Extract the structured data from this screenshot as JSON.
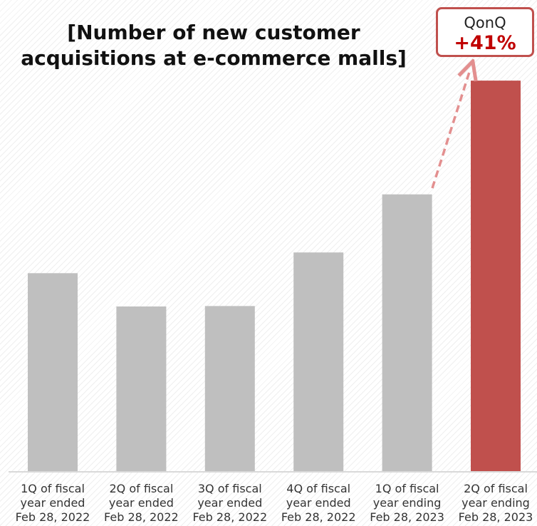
{
  "chart_data": {
    "type": "bar",
    "title": [
      "[Number of new customer",
      "acquisitions at e-commerce malls]"
    ],
    "categories": [
      [
        "1Q of fiscal",
        "year ended",
        "Feb 28, 2022"
      ],
      [
        "2Q of fiscal",
        "year ended",
        "Feb 28, 2022"
      ],
      [
        "3Q of fiscal",
        "year ended",
        "Feb 28, 2022"
      ],
      [
        "4Q of fiscal",
        "year ended",
        "Feb 28, 2022"
      ],
      [
        "1Q of fiscal",
        "year ending",
        "Feb 28, 2023"
      ],
      [
        "2Q of fiscal",
        "year ending",
        "Feb 28, 2023"
      ]
    ],
    "values": [
      48.9,
      40.7,
      40.8,
      54.0,
      68.3,
      96.3
    ],
    "ylim": [
      0,
      100
    ],
    "colors": [
      "#bfbfbf",
      "#bfbfbf",
      "#bfbfbf",
      "#bfbfbf",
      "#bfbfbf",
      "#c0504d"
    ],
    "axis_color": "#d9d9d9",
    "arrow_color": "#e38f8f",
    "grid": false,
    "annotation": {
      "label": "QonQ",
      "value": "+41%",
      "value_color": "#c00000",
      "border_color": "#c0504d"
    }
  }
}
